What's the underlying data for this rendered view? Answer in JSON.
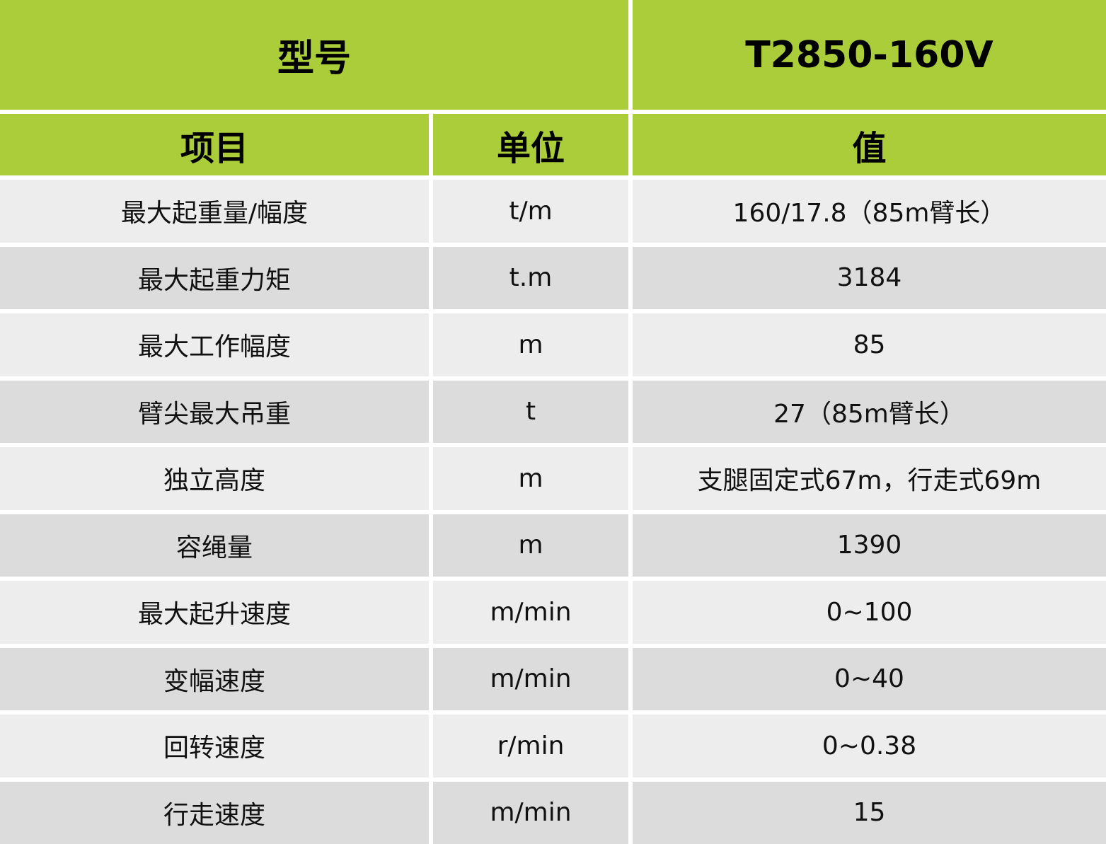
{
  "header": {
    "model_label": "型号",
    "model_value": "T2850-160V"
  },
  "columns": [
    "项目",
    "单位",
    "值"
  ],
  "colors": {
    "header_green": "#abcd3a",
    "row_light": "#ededed",
    "row_dark": "#dcdcdc"
  },
  "rows": [
    {
      "item": "最大起重量/幅度",
      "unit": "t/m",
      "value": "160/17.8（85m臂长）"
    },
    {
      "item": "最大起重力矩",
      "unit": "t.m",
      "value": "3184"
    },
    {
      "item": "最大工作幅度",
      "unit": "m",
      "value": "85"
    },
    {
      "item": "臂尖最大吊重",
      "unit": "t",
      "value": "27（85m臂长）"
    },
    {
      "item": "独立高度",
      "unit": "m",
      "value": "支腿固定式67m，行走式69m"
    },
    {
      "item": "容绳量",
      "unit": "m",
      "value": "1390"
    },
    {
      "item": "最大起升速度",
      "unit": "m/min",
      "value": "0~100"
    },
    {
      "item": "变幅速度",
      "unit": "m/min",
      "value": "0~40"
    },
    {
      "item": "回转速度",
      "unit": "r/min",
      "value": "0~0.38"
    },
    {
      "item": "行走速度",
      "unit": "m/min",
      "value": "15"
    }
  ]
}
